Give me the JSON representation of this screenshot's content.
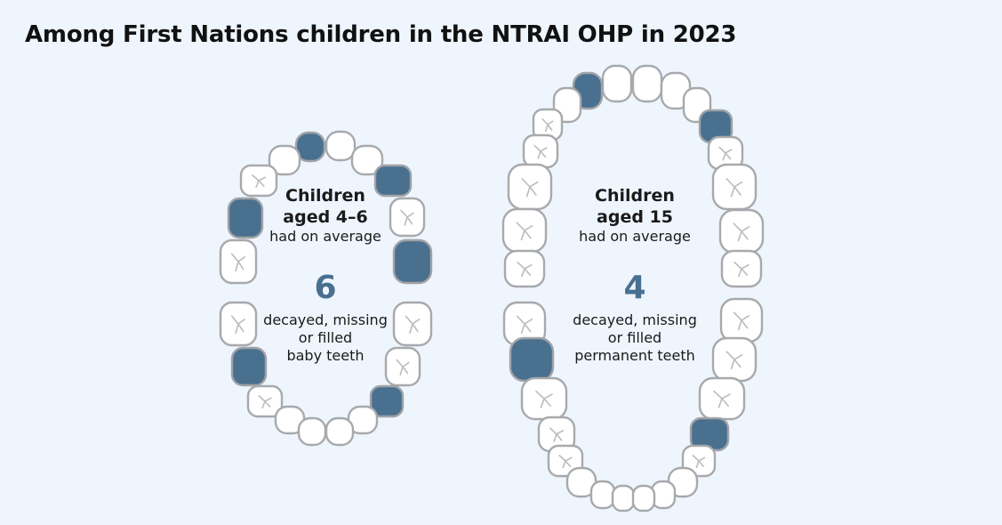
{
  "title": "Among First Nations children in the NTRAI OHP in 2023",
  "colors": {
    "background": "#eef5fd",
    "decayed_tooth": "#4a708f",
    "tooth_outline": "#a7a9ac",
    "number": "#4a708f"
  },
  "panels": [
    {
      "heading_line1": "Children",
      "heading_line2": "aged 4–6",
      "sub": "had on average",
      "value": "6",
      "desc_line1": "decayed, missing",
      "desc_line2": "or filled",
      "desc_line3": "baby teeth"
    },
    {
      "heading_line1": "Children",
      "heading_line2": "aged 15",
      "sub": "had on average",
      "value": "4",
      "desc_line1": "decayed, missing",
      "desc_line2": "or filled",
      "desc_line3": "permanent teeth"
    }
  ],
  "jaws": [
    {
      "name": "baby-teeth-jaw",
      "decayed_shown": 6
    },
    {
      "name": "permanent-teeth-jaw",
      "decayed_shown": 4
    }
  ]
}
